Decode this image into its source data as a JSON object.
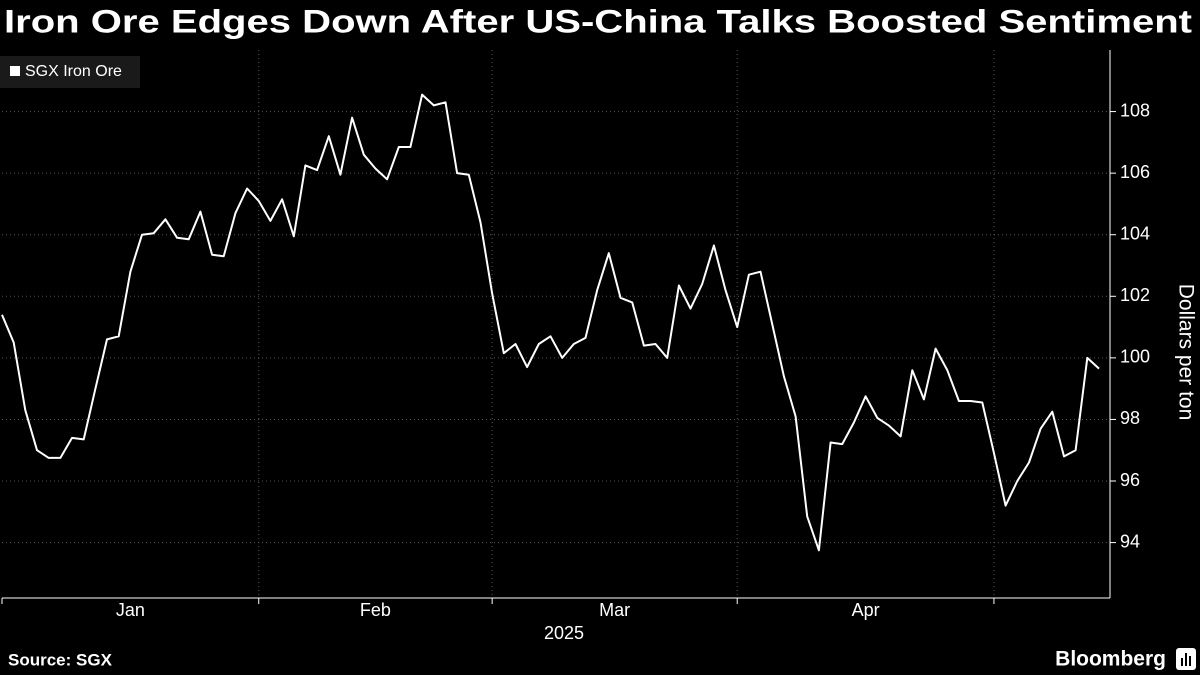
{
  "chart_data": {
    "type": "line",
    "title": "Iron Ore Edges Down After US-China Talks Boosted Sentiment",
    "source": "Source: SGX",
    "brand": "Bloomberg",
    "xlabel": "2025",
    "ylabel": "Dollars per ton",
    "legend": "top-left",
    "grid": true,
    "categories": [
      "Jan",
      "Jan",
      "Jan",
      "Jan",
      "Jan",
      "Jan",
      "Jan",
      "Jan",
      "Jan",
      "Jan",
      "Jan",
      "Jan",
      "Jan",
      "Jan",
      "Jan",
      "Jan",
      "Jan",
      "Jan",
      "Jan",
      "Jan",
      "Jan",
      "Jan",
      "Feb",
      "Feb",
      "Feb",
      "Feb",
      "Feb",
      "Feb",
      "Feb",
      "Feb",
      "Feb",
      "Feb",
      "Feb",
      "Feb",
      "Feb",
      "Feb",
      "Feb",
      "Feb",
      "Feb",
      "Feb",
      "Feb",
      "Feb",
      "Mar",
      "Mar",
      "Mar",
      "Mar",
      "Mar",
      "Mar",
      "Mar",
      "Mar",
      "Mar",
      "Mar",
      "Mar",
      "Mar",
      "Mar",
      "Mar",
      "Mar",
      "Mar",
      "Mar",
      "Mar",
      "Mar",
      "Mar",
      "Mar",
      "Apr",
      "Apr",
      "Apr",
      "Apr",
      "Apr",
      "Apr",
      "Apr",
      "Apr",
      "Apr",
      "Apr",
      "Apr",
      "Apr",
      "Apr",
      "Apr",
      "Apr",
      "Apr",
      "Apr",
      "Apr",
      "Apr",
      "Apr",
      "Apr",
      "Apr",
      null,
      null,
      null,
      null,
      null,
      null,
      null,
      null,
      null,
      null
    ],
    "series": [
      {
        "name": "SGX Iron Ore",
        "color": "#ffffff",
        "values": [
          101.4,
          100.5,
          98.3,
          97.0,
          96.75,
          96.75,
          97.4,
          97.35,
          99.0,
          100.6,
          100.7,
          102.8,
          104.0,
          104.05,
          104.5,
          103.9,
          103.85,
          104.75,
          103.35,
          103.3,
          104.7,
          105.5,
          105.1,
          104.45,
          105.15,
          103.95,
          106.25,
          106.1,
          107.2,
          105.95,
          107.8,
          106.6,
          106.15,
          105.8,
          106.85,
          106.85,
          108.55,
          108.2,
          108.3,
          106.0,
          105.95,
          104.4,
          102.1,
          100.15,
          100.45,
          99.7,
          100.45,
          100.7,
          100.0,
          100.45,
          100.65,
          102.2,
          103.4,
          101.95,
          101.8,
          100.4,
          100.45,
          100.0,
          102.35,
          101.6,
          102.4,
          103.65,
          102.2,
          101.0,
          102.7,
          102.8,
          101.1,
          99.4,
          98.1,
          94.85,
          93.75,
          97.25,
          97.2,
          97.9,
          98.75,
          98.05,
          97.8,
          97.45,
          99.6,
          98.65,
          100.3,
          99.6,
          98.6,
          98.6,
          98.55,
          96.9,
          95.2,
          96.0,
          96.6,
          97.7,
          98.25,
          96.8,
          97.0,
          100.0,
          99.65
        ]
      }
    ],
    "ylim": [
      92.2,
      110
    ],
    "yticks": [
      94,
      96,
      98,
      100,
      102,
      104,
      106,
      108
    ]
  }
}
